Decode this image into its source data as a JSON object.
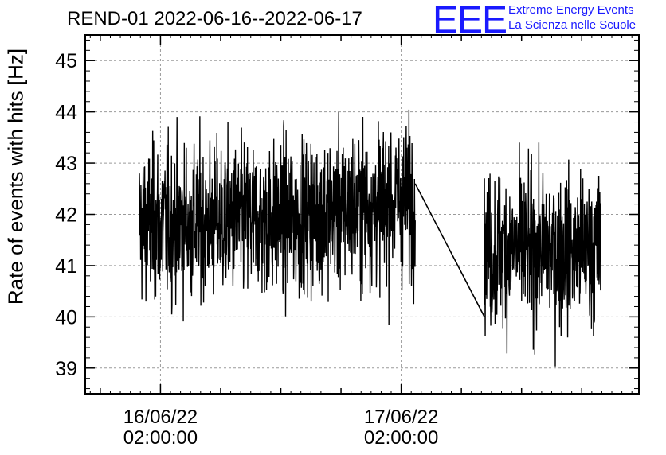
{
  "chart_data": {
    "type": "line",
    "title": "REND-01 2022-06-16--2022-06-17",
    "ylabel": "Rate of events with hits [Hz]",
    "xlabel": "",
    "ylim": [
      38.5,
      45.5
    ],
    "yticks": [
      "39",
      "40",
      "41",
      "42",
      "43",
      "44",
      "45"
    ],
    "xticks": [
      {
        "date": "16/06/22",
        "time": "02:00:00"
      },
      {
        "date": "17/06/22",
        "time": "02:00:00"
      }
    ],
    "xlim_hours": [
      -7.5,
      47.7
    ],
    "grid": true,
    "series": [
      {
        "segments": [
          {
            "start_hour": -2.1,
            "end_hour": 25.4,
            "mean_start": 41.8,
            "mean_mid": 41.9,
            "mean_end": 42.3,
            "min": 39.2,
            "max": 44.7
          },
          {
            "start_hour": 32.3,
            "end_hour": 43.9,
            "mean": 41.3,
            "min": 39.0,
            "max": 43.4
          }
        ],
        "gap_line": {
          "from": [
            25.4,
            42.6
          ],
          "to": [
            32.3,
            40.0
          ]
        }
      }
    ]
  },
  "logo": {
    "mark": "EEE",
    "line1": "Extreme Energy Events",
    "line2": "La Scienza nelle Scuole",
    "color": "#1a1aff"
  }
}
